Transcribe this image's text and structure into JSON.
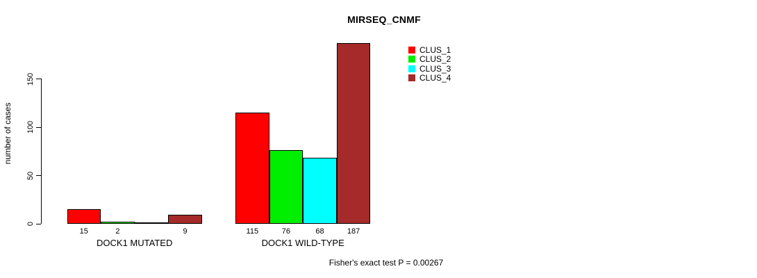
{
  "chart_data": {
    "type": "bar",
    "title": "MIRSEQ_CNMF",
    "ylabel": "number of cases",
    "xlabel": "",
    "ylim": [
      0,
      190
    ],
    "yticks": [
      0,
      50,
      100,
      150
    ],
    "grid": false,
    "categories": [
      "DOCK1 MUTATED",
      "DOCK1 WILD-TYPE"
    ],
    "series": [
      {
        "name": "CLUS_1",
        "color": "#ff0000",
        "values": [
          15,
          115
        ]
      },
      {
        "name": "CLUS_2",
        "color": "#00ee00",
        "values": [
          2,
          76
        ]
      },
      {
        "name": "CLUS_3",
        "color": "#00ffff",
        "values": [
          0,
          68
        ]
      },
      {
        "name": "CLUS_4",
        "color": "#a52a2a",
        "values": [
          9,
          187
        ]
      }
    ],
    "bar_value_labels": [
      [
        "15",
        "2",
        "",
        "9"
      ],
      [
        "115",
        "76",
        "68",
        "187"
      ]
    ],
    "legend": {
      "position": "top-right",
      "entries": [
        "CLUS_1",
        "CLUS_2",
        "CLUS_3",
        "CLUS_4"
      ]
    },
    "annotation": "Fisher's exact test P = 0.00267"
  }
}
